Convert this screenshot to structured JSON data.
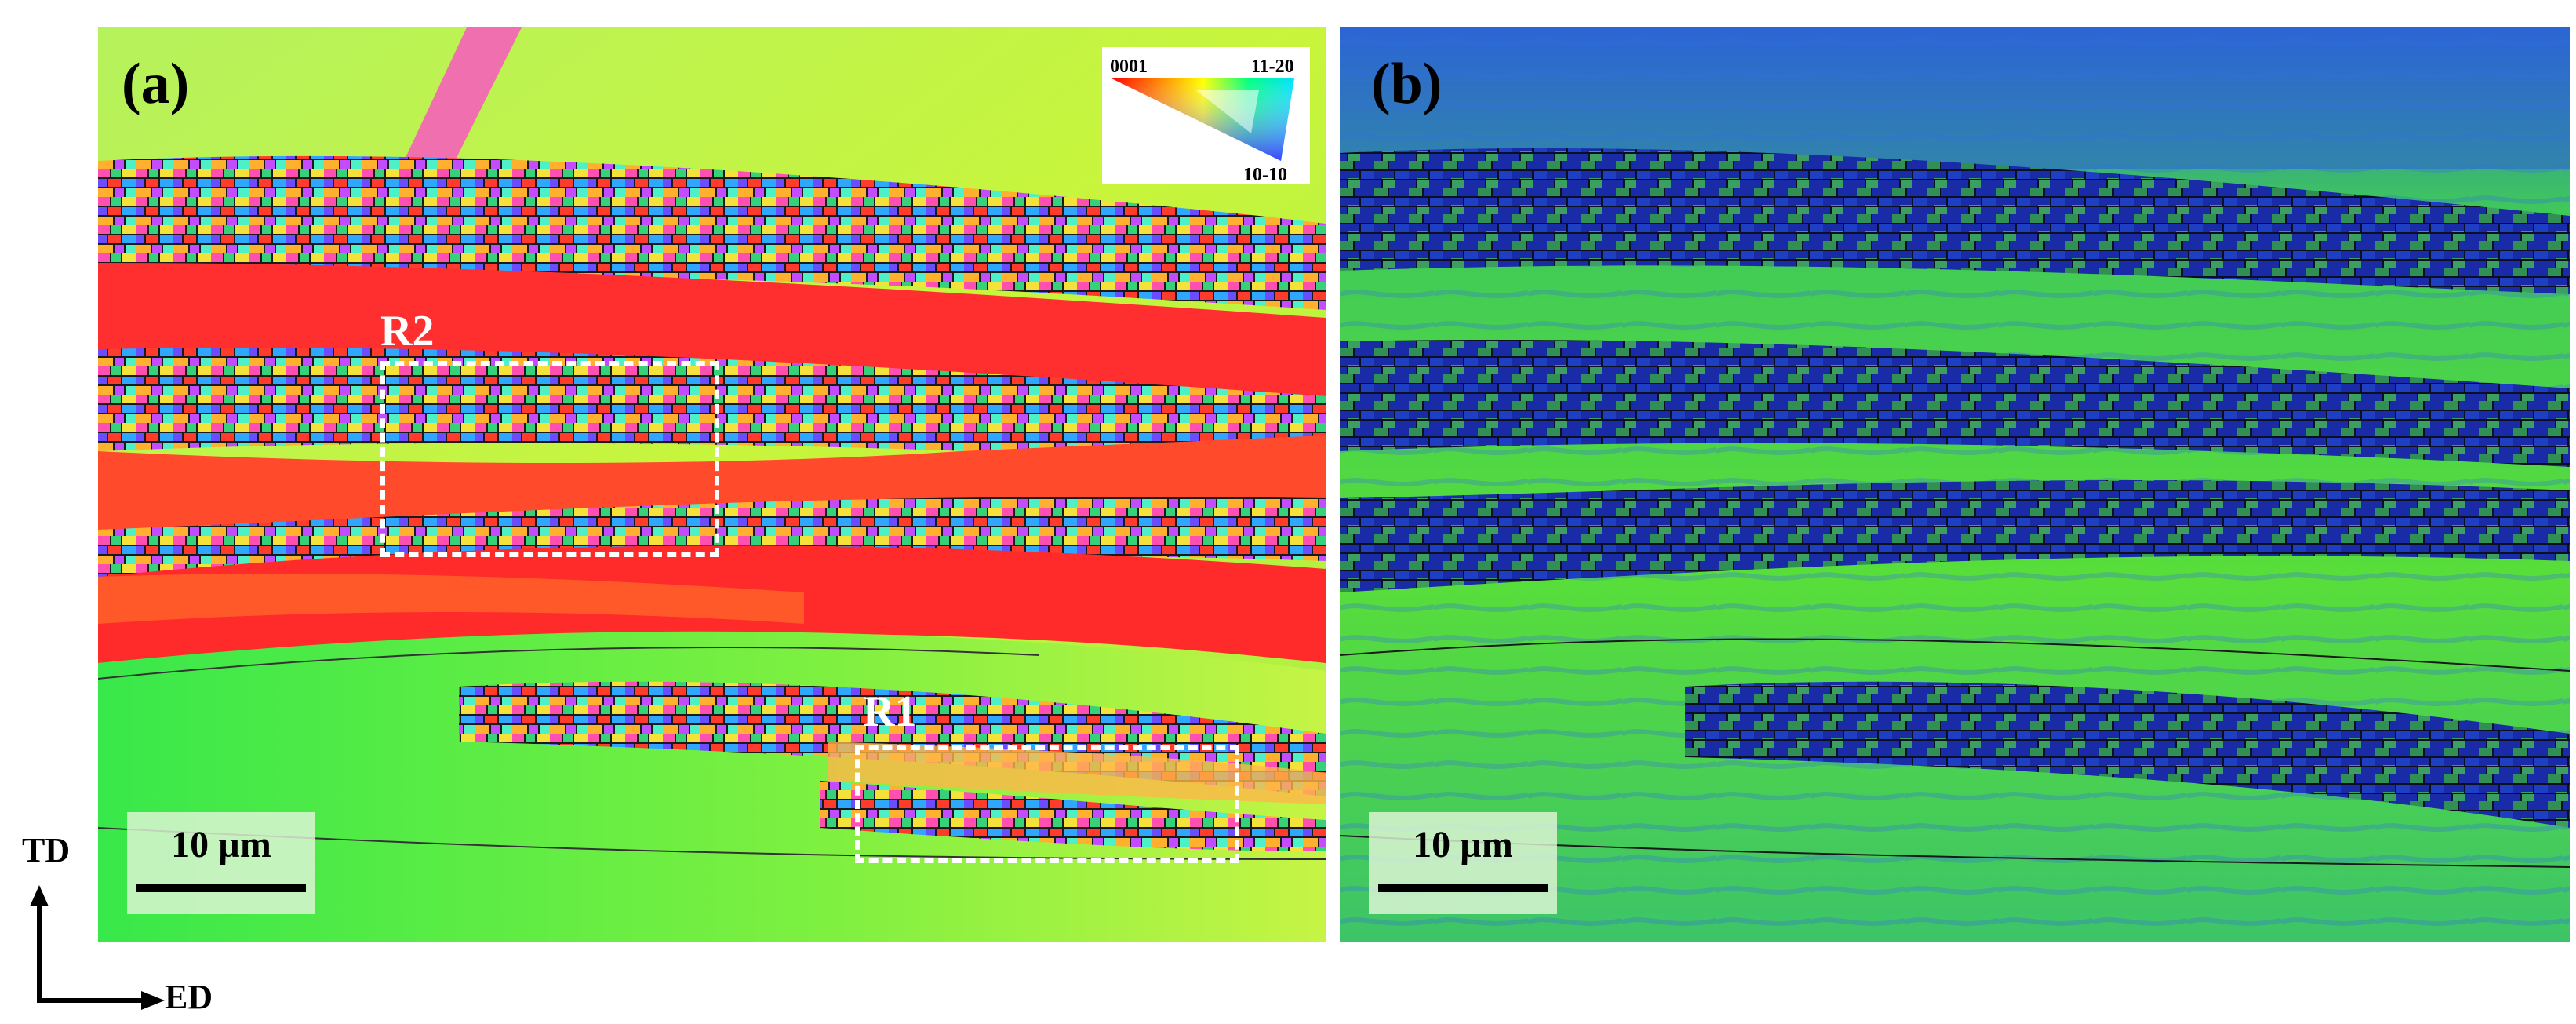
{
  "panel_a": {
    "label": "(a)",
    "scale_bar": "10 µm",
    "legend": {
      "corner_top_left": "0001",
      "corner_top_right": "11-20",
      "corner_bottom": "10-10"
    },
    "regions": [
      {
        "label": "R2"
      },
      {
        "label": "R1"
      }
    ]
  },
  "panel_b": {
    "label": "(b)",
    "scale_bar": "10 µm"
  },
  "axes": {
    "vertical": "TD",
    "horizontal": "ED"
  },
  "colors": {
    "matrix_a": "#b4ef3c",
    "band_red": "#ff2d2d",
    "band_green": "#44ef3c",
    "matrix_b": "#3cd74a",
    "band_blue": "#1b2aa8"
  }
}
